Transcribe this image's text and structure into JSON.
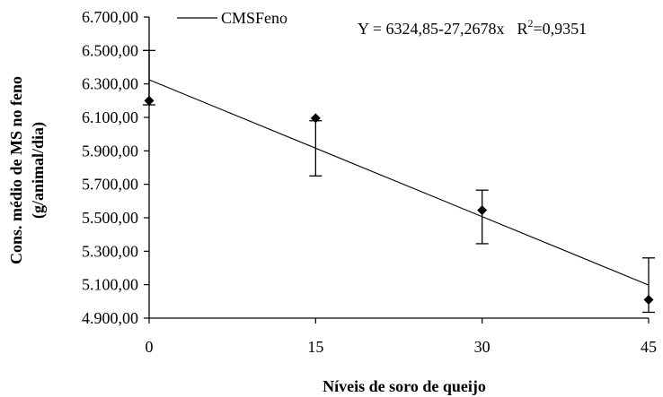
{
  "chart_data": {
    "type": "scatter",
    "xlabel": "Níveis de soro de queijo",
    "ylabel_line1": "Cons. médio de MS no feno",
    "ylabel_line2": "(g/animal/dia)",
    "x_ticks": [
      "0",
      "15",
      "30",
      "45"
    ],
    "x_values": [
      0,
      15,
      30,
      45
    ],
    "y_ticks": [
      "4.900,00",
      "5.100,00",
      "5.300,00",
      "5.500,00",
      "5.700,00",
      "5.900,00",
      "6.100,00",
      "6.300,00",
      "6.500,00",
      "6.700,00"
    ],
    "y_tick_values": [
      4900,
      5100,
      5300,
      5500,
      5700,
      5900,
      6100,
      6300,
      6500,
      6700
    ],
    "xlim": [
      0,
      45
    ],
    "ylim": [
      4900,
      6700
    ],
    "grid": false,
    "legend_position": "top-left",
    "series": [
      {
        "name": "CMSFeno",
        "points": [
          {
            "x": 0,
            "y": 6200,
            "err_low": 6175,
            "err_high": 6500
          },
          {
            "x": 15,
            "y": 6095,
            "err_low": 5750,
            "err_high": 6080
          },
          {
            "x": 30,
            "y": 5545,
            "err_low": 5345,
            "err_high": 5665
          },
          {
            "x": 45,
            "y": 5010,
            "err_low": 4935,
            "err_high": 5260
          }
        ]
      }
    ],
    "regression": {
      "intercept": 6324.85,
      "slope": -27.2678,
      "equation_text": "Y = 6324,85-27,2678x",
      "r2_prefix": "R",
      "r2_sup": "2",
      "r2_value": "=0,9351"
    }
  }
}
